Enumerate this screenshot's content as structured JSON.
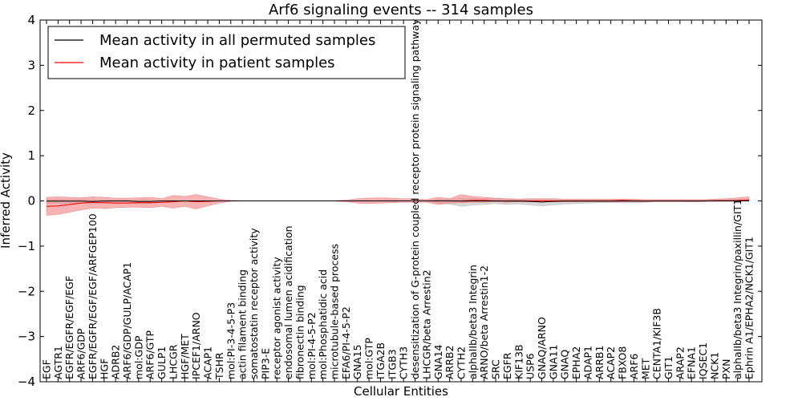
{
  "chart_data": {
    "type": "line",
    "title": "Arf6 signaling events -- 314 samples",
    "xlabel": "Cellular Entities",
    "ylabel": "Inferred Activity",
    "ylim": [
      -4,
      4
    ],
    "yticks": [
      "4",
      "3",
      "2",
      "1",
      "0",
      "−1",
      "−2",
      "−3",
      "−4"
    ],
    "grid": false,
    "legend_position": "top-left",
    "categories": [
      "EGF",
      "AGTR1",
      "EGFR/EGFR/EGF/EGF",
      "ARF6/GDP",
      "EGFR/EGFR/EGF/EGF/ARFGEP100",
      "HGF",
      "ADRB2",
      "ARF6/GDP/GULP/ACAP1",
      "mol:GDP",
      "ARF6/GTP",
      "GULP1",
      "LHCGR",
      "HGF/MET",
      "IPCEF1/ARNO",
      "ACAP1",
      "TSHR",
      "mol:PI-3-4-5-P3",
      "actin filament binding",
      "somatostatin receptor activity",
      "PIP3-E",
      "receptor agonist activity",
      "endosomal lumen acidification",
      "fibronectin binding",
      "mol:PI-4-5-P2",
      "mol:Phosphatidic acid",
      "microtubule-based process",
      "EFA6/PI-4-5-P2",
      "GNA15",
      "mol:GTP",
      "ITGA2B",
      "ITGB3",
      "CYTH3",
      "desensitization of G-protein coupled receptor protein signaling pathway",
      "LHCGR/beta Arrestin2",
      "GNA14",
      "ARRB2",
      "CYTH2",
      "alphaIIb/beta3 Integrin",
      "ARNO/beta Arrestin1-2",
      "SRC",
      "EGFR",
      "KIF13B",
      "USP6",
      "GNAQ/ARNO",
      "GNA11",
      "GNAQ",
      "EPHA2",
      "ADAP1",
      "ARRB1",
      "ACAP2",
      "FBXO8",
      "ARF6",
      "MET",
      "CENTA1/KIF3B",
      "GIT1",
      "ARAP2",
      "EFNA1",
      "IQSEC1",
      "NCK1",
      "PXN",
      "alphaIIb/beta3 Integrin/paxillin/GIT1",
      "Ephrin A1/EPHA2/NCK1/GIT1"
    ],
    "series": [
      {
        "name": "Mean activity in all permuted samples",
        "color": "#000000",
        "band_color": "#b8b8b8",
        "values": [
          -0.005,
          -0.004,
          -0.004,
          -0.003,
          -0.012,
          -0.004,
          -0.002,
          -0.002,
          -0.015,
          -0.012,
          -0.001,
          -0.001,
          0,
          0,
          0,
          0,
          0,
          0,
          0,
          0,
          0,
          0,
          0,
          0,
          0,
          0,
          0,
          0,
          0,
          0,
          0,
          0,
          0,
          0,
          0.002,
          0,
          -0.003,
          -0.002,
          -0.002,
          0,
          -0.005,
          -0.002,
          -0.01,
          -0.025,
          -0.01,
          -0.005,
          -0.005,
          -0.005,
          -0.003,
          -0.003,
          -0.002,
          -0.002,
          -0.003,
          0,
          0,
          0,
          -0.002,
          0,
          0.003,
          0.004,
          0.003,
          0.002
        ],
        "upper": [
          0.03,
          0.03,
          0.03,
          0.03,
          0.02,
          0.02,
          0.02,
          0.02,
          0.02,
          0.02,
          0.01,
          0.01,
          0.005,
          0.005,
          0.005,
          0.003,
          0,
          0,
          0,
          0,
          0,
          0,
          0,
          0,
          0,
          0,
          0,
          0.01,
          0.01,
          0.01,
          0.01,
          0.005,
          0.005,
          0.005,
          0.03,
          0.04,
          0.05,
          0.05,
          0.05,
          0.05,
          0.04,
          0.04,
          0.03,
          0.03,
          0.03,
          0.02,
          0.02,
          0.02,
          0.02,
          0.02,
          0.02,
          0.02,
          0.01,
          0.01,
          0.01,
          0.01,
          0.01,
          0.01,
          0.02,
          0.02,
          0.02,
          0.02
        ],
        "lower": [
          -0.05,
          -0.05,
          -0.05,
          -0.05,
          -0.06,
          -0.05,
          -0.04,
          -0.04,
          -0.06,
          -0.06,
          -0.03,
          -0.02,
          -0.01,
          -0.005,
          -0.005,
          -0.003,
          0,
          0,
          0,
          0,
          0,
          0,
          0,
          0,
          0,
          0,
          0,
          -0.01,
          -0.01,
          -0.01,
          -0.01,
          -0.005,
          -0.005,
          -0.005,
          -0.05,
          -0.07,
          -0.12,
          -0.09,
          -0.08,
          -0.06,
          -0.08,
          -0.07,
          -0.09,
          -0.11,
          -0.09,
          -0.07,
          -0.06,
          -0.05,
          -0.04,
          -0.04,
          -0.04,
          -0.04,
          -0.03,
          -0.02,
          -0.02,
          -0.02,
          -0.02,
          -0.01,
          -0.01,
          -0.01,
          -0.01,
          -0.01
        ]
      },
      {
        "name": "Mean activity in patient samples",
        "color": "#ff0000",
        "band_color": "#f08080",
        "values": [
          -0.12,
          -0.11,
          -0.08,
          -0.05,
          -0.03,
          -0.04,
          -0.05,
          -0.05,
          -0.04,
          -0.04,
          -0.03,
          -0.02,
          0,
          -0.02,
          -0.01,
          0,
          0,
          0,
          0,
          0,
          0,
          0,
          0,
          0,
          0,
          0,
          0,
          0,
          0,
          0,
          0,
          0,
          0,
          0,
          0,
          0,
          0,
          0.01,
          0.01,
          0,
          0,
          0,
          0,
          0,
          0,
          0,
          0,
          0,
          0,
          0,
          0.01,
          0,
          0,
          0,
          0,
          0,
          0,
          0,
          0,
          0,
          0.01,
          0.02
        ],
        "upper": [
          0.08,
          0.09,
          0.08,
          0.07,
          0.09,
          0.08,
          0.06,
          0.06,
          0.07,
          0.08,
          0.05,
          0.12,
          0.1,
          0.14,
          0.09,
          0.04,
          0.01,
          0.005,
          0.003,
          0.003,
          0.003,
          0.003,
          0.003,
          0.003,
          0.003,
          0.003,
          0.02,
          0.05,
          0.06,
          0.07,
          0.06,
          0.05,
          0.05,
          0.03,
          0.08,
          0.05,
          0.14,
          0.1,
          0.08,
          0.06,
          0.05,
          0.04,
          0.05,
          0.05,
          0.05,
          0.04,
          0.04,
          0.04,
          0.04,
          0.04,
          0.04,
          0.04,
          0.03,
          0.03,
          0.03,
          0.03,
          0.03,
          0.03,
          0.04,
          0.05,
          0.07,
          0.09
        ],
        "lower": [
          -0.32,
          -0.3,
          -0.25,
          -0.2,
          -0.16,
          -0.17,
          -0.15,
          -0.14,
          -0.14,
          -0.15,
          -0.12,
          -0.16,
          -0.12,
          -0.18,
          -0.11,
          -0.05,
          -0.01,
          -0.005,
          -0.003,
          -0.003,
          -0.003,
          -0.003,
          -0.003,
          -0.003,
          -0.003,
          -0.003,
          -0.02,
          -0.05,
          -0.06,
          -0.05,
          -0.04,
          -0.03,
          -0.03,
          -0.03,
          -0.08,
          -0.05,
          -0.04,
          -0.03,
          -0.03,
          -0.02,
          -0.03,
          -0.02,
          -0.02,
          -0.02,
          -0.02,
          -0.02,
          -0.02,
          -0.02,
          -0.02,
          -0.02,
          -0.02,
          -0.02,
          -0.02,
          -0.02,
          -0.02,
          -0.02,
          -0.02,
          -0.02,
          -0.01,
          -0.01,
          -0.01,
          0
        ]
      }
    ]
  }
}
